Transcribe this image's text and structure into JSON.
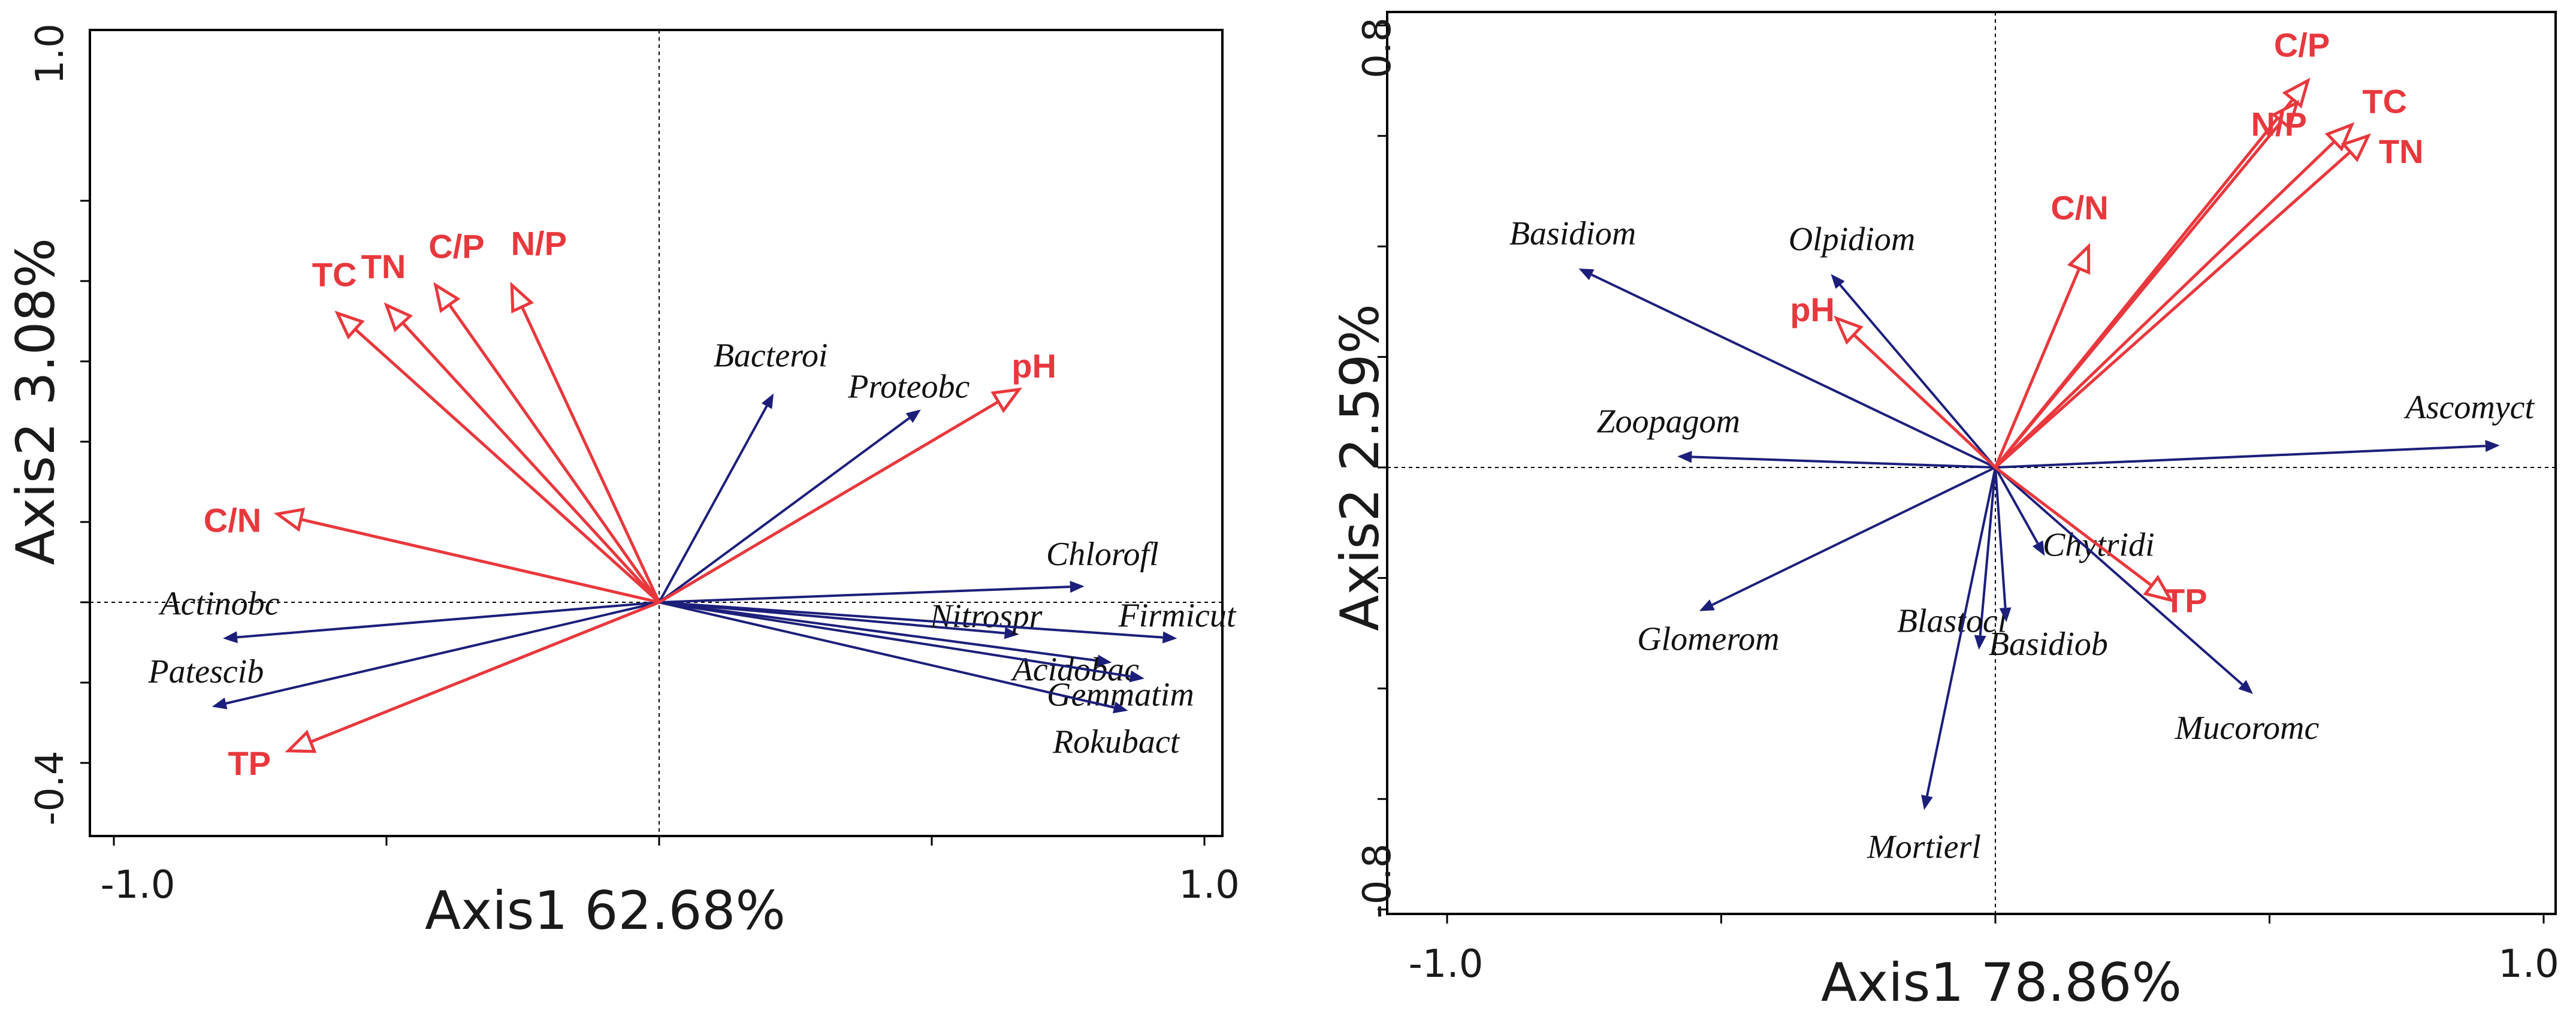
{
  "colors": {
    "env": "#e8383d",
    "species": "#1c1f7a",
    "axis": "#000000"
  },
  "chart_data": [
    {
      "type": "biplot",
      "panel": "left",
      "xlabel": "Axis1 62.68%",
      "ylabel": "Axis2 3.08%",
      "xlim": [
        -1.0,
        1.0
      ],
      "ylim": [
        -0.4,
        1.0
      ],
      "xtick_labels": [
        "-1.0",
        "1.0"
      ],
      "ytick_labels": [
        "1.0",
        "-0.4"
      ],
      "xticks_minor": [
        -1.0,
        -0.5,
        0.0,
        0.5,
        1.0
      ],
      "yticks_minor": [
        1.0,
        0.8,
        0.6,
        0.4,
        0.2,
        0.0,
        -0.2,
        -0.4
      ],
      "env_vectors": [
        {
          "label": "TC",
          "x": -0.59,
          "y": 0.72
        },
        {
          "label": "TN",
          "x": -0.5,
          "y": 0.74
        },
        {
          "label": "C/P",
          "x": -0.41,
          "y": 0.79
        },
        {
          "label": "N/P",
          "x": -0.27,
          "y": 0.79
        },
        {
          "label": "pH",
          "x": 0.66,
          "y": 0.53
        },
        {
          "label": "C/N",
          "x": -0.7,
          "y": 0.22
        },
        {
          "label": "TP",
          "x": -0.68,
          "y": -0.37
        }
      ],
      "species_vectors": [
        {
          "label": "Bacteroi",
          "x": 0.21,
          "y": 0.52
        },
        {
          "label": "Proteobc",
          "x": 0.48,
          "y": 0.48
        },
        {
          "label": "Chlorofl",
          "x": 0.78,
          "y": 0.04
        },
        {
          "label": "Nitrospr",
          "x": 0.66,
          "y": -0.08
        },
        {
          "label": "Firmicut",
          "x": 0.95,
          "y": -0.09
        },
        {
          "label": "Acidobac",
          "x": 0.83,
          "y": -0.15
        },
        {
          "label": "Gemmatim",
          "x": 0.89,
          "y": -0.19
        },
        {
          "label": "Rokubact",
          "x": 0.86,
          "y": -0.27
        },
        {
          "label": "Actinobc",
          "x": -0.8,
          "y": -0.09
        },
        {
          "label": "Patescib",
          "x": -0.82,
          "y": -0.26
        }
      ]
    },
    {
      "type": "biplot",
      "panel": "right",
      "xlabel": "Axis1 78.86%",
      "ylabel": "Axis2 2.59%",
      "xlim": [
        -1.0,
        1.0
      ],
      "ylim": [
        -0.8,
        0.8
      ],
      "xtick_labels": [
        "-1.0",
        "1.0"
      ],
      "ytick_labels": [
        "0.8",
        "-0.8"
      ],
      "xticks_minor": [
        -1.0,
        -0.5,
        0.0,
        0.5,
        1.0
      ],
      "yticks_minor": [
        0.8,
        0.6,
        0.4,
        0.2,
        0.0,
        -0.2,
        -0.4,
        -0.6,
        -0.8
      ],
      "env_vectors": [
        {
          "label": "C/P",
          "x": 0.57,
          "y": 0.7
        },
        {
          "label": "TC",
          "x": 0.65,
          "y": 0.62
        },
        {
          "label": "N/P",
          "x": 0.55,
          "y": 0.66
        },
        {
          "label": "TN",
          "x": 0.68,
          "y": 0.6
        },
        {
          "label": "C/N",
          "x": 0.17,
          "y": 0.4
        },
        {
          "label": "pH",
          "x": -0.29,
          "y": 0.27
        },
        {
          "label": "TP",
          "x": 0.32,
          "y": -0.24
        }
      ],
      "species_vectors": [
        {
          "label": "Basidiom",
          "x": -0.76,
          "y": 0.36
        },
        {
          "label": "Olpidiom",
          "x": -0.3,
          "y": 0.35
        },
        {
          "label": "Zoopagom",
          "x": -0.58,
          "y": 0.02
        },
        {
          "label": "Ascomyct",
          "x": 0.92,
          "y": 0.04
        },
        {
          "label": "Chytridi",
          "x": 0.09,
          "y": -0.16
        },
        {
          "label": "Glomerom",
          "x": -0.54,
          "y": -0.26
        },
        {
          "label": "Blastocl",
          "x": -0.03,
          "y": -0.33
        },
        {
          "label": "Basidiob",
          "x": 0.02,
          "y": -0.28
        },
        {
          "label": "Mucoromc",
          "x": 0.47,
          "y": -0.41
        },
        {
          "label": "Mortierl",
          "x": -0.13,
          "y": -0.62
        }
      ]
    }
  ]
}
